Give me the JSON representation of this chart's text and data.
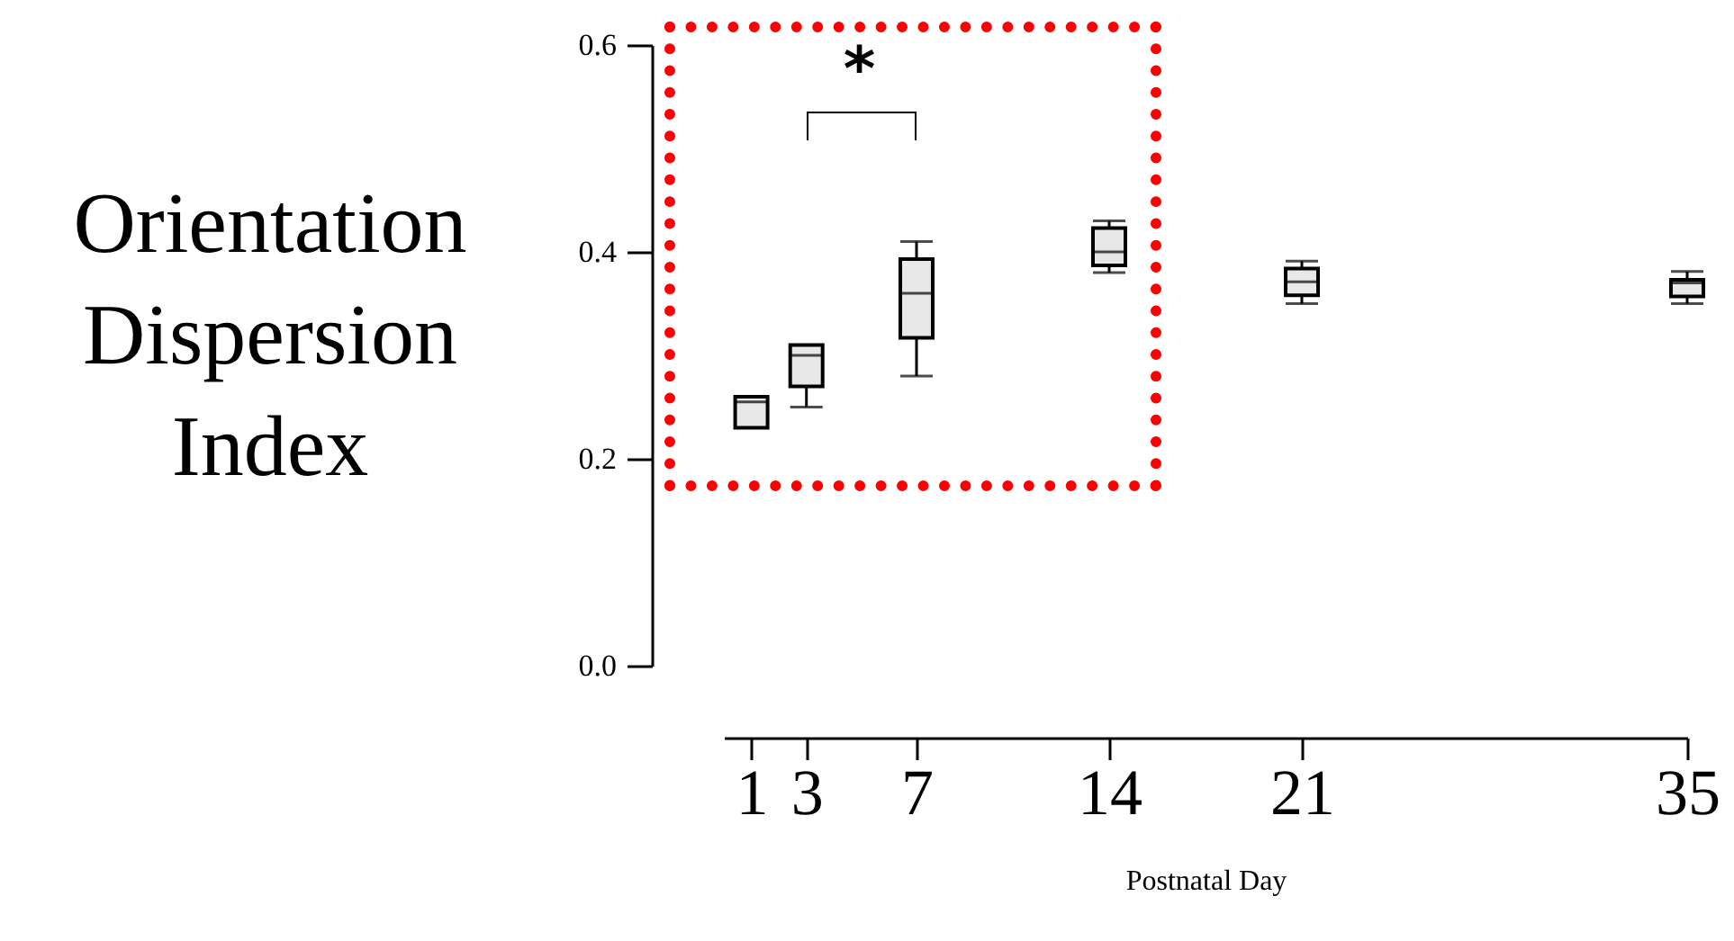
{
  "chart_data": {
    "type": "box",
    "xlabel": "Postnatal Day",
    "ylabel": "Orientation Dispersion Index",
    "annotations": [
      "*"
    ],
    "x": [
      1,
      3,
      7,
      14,
      21,
      35
    ],
    "color": "#e8e8e8",
    "boxes": [
      {
        "low": 0.23,
        "q1": 0.23,
        "median": 0.255,
        "q3": 0.26,
        "high": 0.26
      },
      {
        "low": 0.25,
        "q1": 0.27,
        "median": 0.3,
        "q3": 0.31,
        "high": 0.31
      },
      {
        "low": 0.28,
        "q1": 0.317,
        "median": 0.36,
        "q3": 0.393,
        "high": 0.41
      },
      {
        "low": 0.38,
        "q1": 0.387,
        "median": 0.4,
        "q3": 0.423,
        "high": 0.43
      },
      {
        "low": 0.35,
        "q1": 0.358,
        "median": 0.371,
        "q3": 0.384,
        "high": 0.391
      },
      {
        "low": 0.35,
        "q1": 0.357,
        "median": 0.37,
        "q3": 0.373,
        "high": 0.381
      }
    ],
    "xlim": [
      0,
      35
    ],
    "ylim": [
      0,
      0.6
    ],
    "xticks": [
      1,
      3,
      7,
      14,
      21,
      35
    ],
    "yticks": [
      {
        "value": 0,
        "label": "0.0"
      },
      {
        "value": 0.2,
        "label": "0.2"
      },
      {
        "value": 0.4,
        "label": "0.4"
      },
      {
        "value": 0.6,
        "label": "0.6"
      }
    ],
    "grid": false
  }
}
